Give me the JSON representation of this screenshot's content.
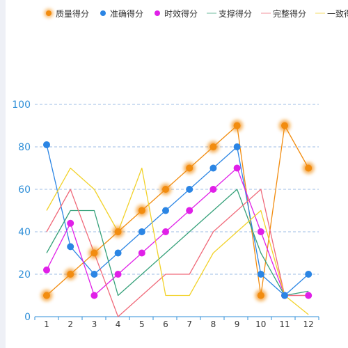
{
  "chart_data": {
    "type": "line",
    "x": [
      "1",
      "2",
      "3",
      "4",
      "5",
      "6",
      "7",
      "8",
      "9",
      "10",
      "11",
      "12"
    ],
    "ylim": [
      0,
      100
    ],
    "yticks": [
      0,
      20,
      40,
      60,
      80,
      100
    ],
    "grid": true,
    "legend_position": "top",
    "series": [
      {
        "name": "质量得分",
        "color": "#f28c0f",
        "markers": true,
        "glow": true,
        "values": [
          10,
          20,
          30,
          40,
          50,
          60,
          70,
          80,
          90,
          10,
          90,
          70
        ]
      },
      {
        "name": "准确得分",
        "color": "#2b85e4",
        "markers": true,
        "glow": false,
        "values": [
          81,
          33,
          20,
          30,
          40,
          50,
          60,
          70,
          80,
          20,
          10,
          20
        ]
      },
      {
        "name": "时效得分",
        "color": "#e020e8",
        "markers": true,
        "glow": false,
        "values": [
          22,
          44,
          10,
          20,
          30,
          40,
          50,
          60,
          70,
          40,
          10,
          10
        ]
      },
      {
        "name": "支撑得分",
        "color": "#36a17a",
        "markers": false,
        "glow": false,
        "values": [
          30,
          50,
          50,
          10,
          20,
          30,
          40,
          50,
          60,
          30,
          10,
          12
        ]
      },
      {
        "name": "完整得分",
        "color": "#f06a7a",
        "markers": false,
        "glow": false,
        "values": [
          40,
          60,
          30,
          0,
          10,
          20,
          20,
          40,
          50,
          60,
          10,
          10
        ]
      },
      {
        "name": "一致得分",
        "color": "#f2d22a",
        "markers": false,
        "glow": false,
        "values": [
          50,
          70,
          60,
          40,
          70,
          10,
          10,
          30,
          40,
          50,
          10,
          1
        ]
      }
    ]
  },
  "colors": {
    "axis": "#2f8fd8",
    "grid": "#9dbde6",
    "background_strip": "#eef0f6"
  }
}
